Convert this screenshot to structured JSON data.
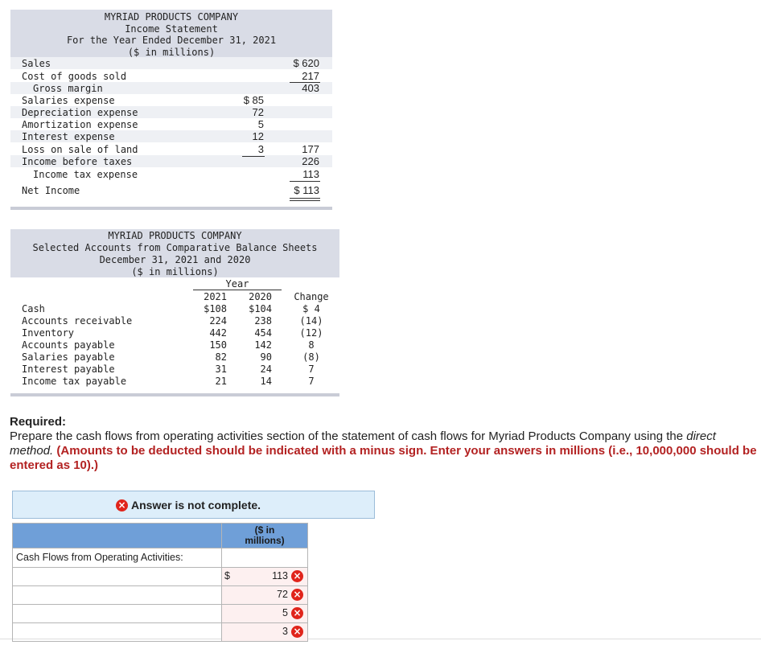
{
  "income_statement": {
    "title_lines": [
      "MYRIAD PRODUCTS COMPANY",
      "Income Statement",
      "For the Year Ended December 31, 2021",
      "($ in millions)"
    ],
    "rows": [
      {
        "label": "Sales",
        "total": "$ 620"
      },
      {
        "label": "Cost of goods sold",
        "total": "217"
      },
      {
        "label": "Gross margin",
        "total": "403"
      },
      {
        "label": "Salaries expense",
        "amount": "$ 85"
      },
      {
        "label": "Depreciation expense",
        "amount": "72"
      },
      {
        "label": "Amortization expense",
        "amount": "5"
      },
      {
        "label": "Interest expense",
        "amount": "12"
      },
      {
        "label": "Loss on sale of land",
        "amount": "3",
        "total": "177"
      },
      {
        "label": "Income before taxes",
        "total": "226"
      },
      {
        "label": "Income tax expense",
        "total": "113"
      },
      {
        "label": "Net Income",
        "total": "$ 113"
      }
    ]
  },
  "balance_sheet": {
    "title_lines": [
      "MYRIAD PRODUCTS COMPANY",
      "Selected Accounts from Comparative Balance Sheets",
      "December 31, 2021 and 2020",
      "($ in millions)"
    ],
    "year_header": "Year",
    "columns": [
      "2021",
      "2020",
      "Change"
    ],
    "rows": [
      {
        "label": "Cash",
        "values": [
          "$108",
          "$104",
          "$ 4"
        ]
      },
      {
        "label": "Accounts receivable",
        "values": [
          "224",
          "238",
          "(14)"
        ]
      },
      {
        "label": "Inventory",
        "values": [
          "442",
          "454",
          "(12)"
        ]
      },
      {
        "label": "Accounts payable",
        "values": [
          "150",
          "142",
          "8"
        ]
      },
      {
        "label": "Salaries payable",
        "values": [
          "82",
          "90",
          "(8)"
        ]
      },
      {
        "label": "Interest payable",
        "values": [
          "31",
          "24",
          "7"
        ]
      },
      {
        "label": "Income tax payable",
        "values": [
          "21",
          "14",
          "7"
        ]
      }
    ]
  },
  "required": {
    "label": "Required:",
    "text": "Prepare the cash flows from operating activities section of the statement of cash flows for Myriad Products Company using the",
    "emphasis": "direct method.",
    "instruction": "(Amounts to be deducted should be indicated with a minus sign. Enter your answers in millions (i.e., 10,000,000 should be entered as 10).)"
  },
  "answer": {
    "status": "Answer is not complete.",
    "column_header": "($ in millions)",
    "section_label": "Cash Flows from Operating Activities:",
    "rows": [
      {
        "prefix": "$",
        "value": 113
      },
      {
        "value": 72
      },
      {
        "value": 5
      },
      {
        "value": 3
      }
    ]
  }
}
